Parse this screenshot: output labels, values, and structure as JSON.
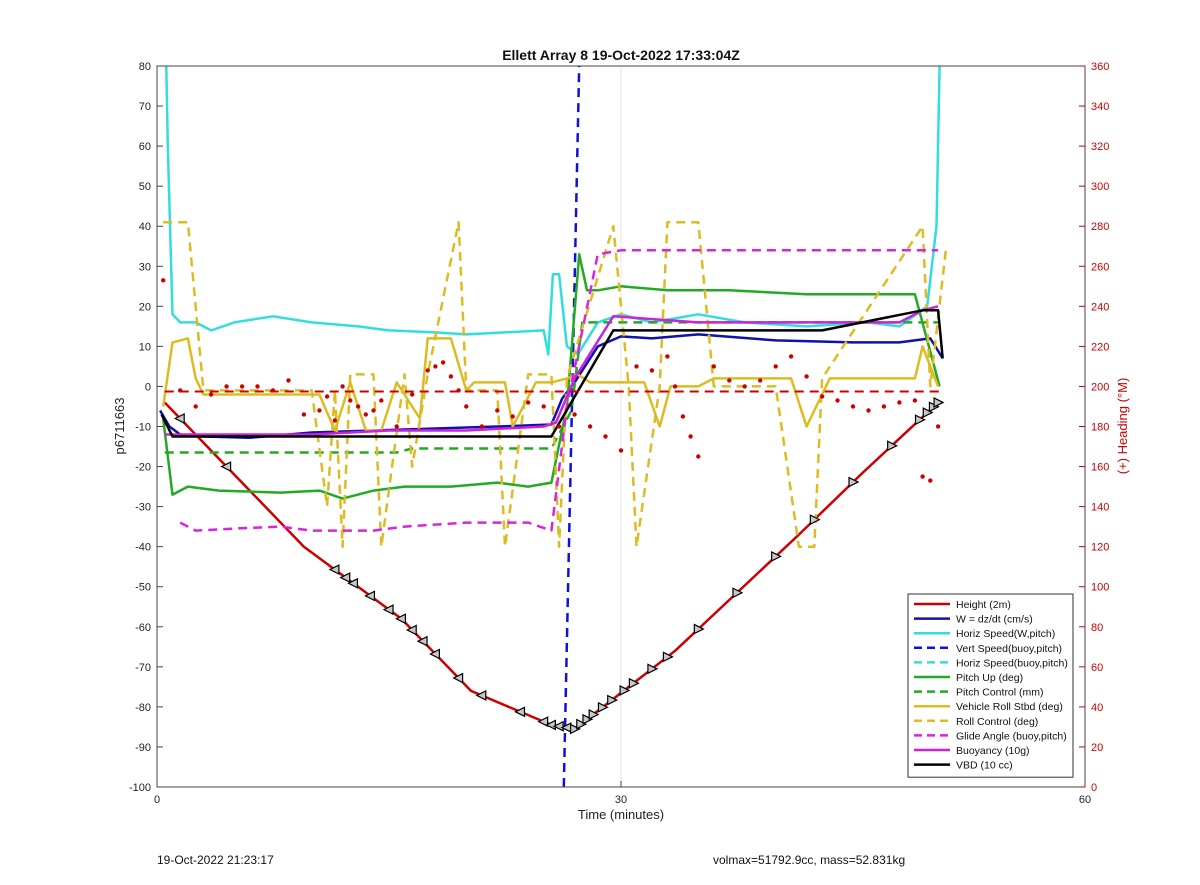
{
  "chart_data": {
    "type": "line",
    "title": "Ellett Array 8 19-Oct-2022 17:33:04Z",
    "xlabel": "Time (minutes)",
    "ylabel": "p6711663",
    "y2label": "(+) Heading (°M)",
    "xlim": [
      0,
      60
    ],
    "ylim": [
      -100,
      80
    ],
    "y2lim": [
      0,
      360
    ],
    "xticks": [
      0,
      30,
      60
    ],
    "yticks": [
      -100,
      -90,
      -80,
      -70,
      -60,
      -50,
      -40,
      -30,
      -20,
      -10,
      0,
      10,
      20,
      30,
      40,
      50,
      60,
      70,
      80
    ],
    "y2ticks": [
      0,
      20,
      40,
      60,
      80,
      100,
      120,
      140,
      160,
      180,
      200,
      220,
      240,
      260,
      280,
      300,
      320,
      340,
      360
    ],
    "grid": "x-only",
    "legend_position": "bottom-right",
    "colors": {
      "left_axis": "#000000",
      "right_axis": "#cc0000"
    },
    "series": [
      {
        "name": "Height (2m)",
        "color": "#cc0000",
        "style": "solid",
        "x": [
          0.5,
          9.5,
          15.8,
          20.3,
          25.5,
          27.0,
          29.5,
          33.5,
          41.5,
          45.5,
          50.5
        ],
        "y": [
          -4,
          -40,
          -58,
          -76,
          -84.5,
          -85.5,
          -78,
          -66,
          -37,
          -22,
          -4
        ]
      },
      {
        "name": "W = dz/dt (cm/s)",
        "color": "#1010aa",
        "style": "solid",
        "x": [
          0.2,
          0.8,
          1.5,
          3,
          6,
          10,
          14,
          18,
          22,
          25.5,
          26.2,
          27,
          28.5,
          30,
          32,
          35,
          40,
          45,
          48,
          50,
          50.8
        ],
        "y": [
          -6,
          -10,
          -12,
          -12.5,
          -12.8,
          -11.5,
          -11,
          -10.5,
          -10,
          -9.5,
          -3,
          1,
          10,
          12.5,
          12,
          13,
          11.5,
          11,
          11,
          12,
          7
        ]
      },
      {
        "name": "Horiz Speed(W,pitch)",
        "color": "#33dddd",
        "style": "solid",
        "x": [
          0.6,
          0.7,
          1.0,
          1.5,
          2.5,
          3.5,
          5,
          7.5,
          10,
          13,
          15,
          18,
          20,
          22.5,
          25,
          25.3,
          25.6,
          26,
          26.5,
          27.2,
          28.5,
          30,
          32,
          35,
          38,
          42,
          46,
          48,
          49.8,
          50.4,
          50.6
        ],
        "y": [
          80,
          60,
          18,
          16,
          16,
          14,
          16,
          17.5,
          16,
          15,
          14,
          13.5,
          13,
          13.5,
          14,
          8,
          28,
          28,
          10,
          8,
          16,
          18,
          16,
          18,
          16,
          15,
          16,
          15,
          20,
          40,
          80
        ]
      },
      {
        "name": "Vert Speed(buoy,pitch)",
        "color": "#1010dd",
        "style": "dashed",
        "x": [
          26.3,
          27.3
        ],
        "y": [
          -100,
          80
        ]
      },
      {
        "name": "Horiz Speed(buoy,pitch)",
        "color": "#33dddd",
        "style": "dashed",
        "x": [],
        "y": []
      },
      {
        "name": "Pitch Up (deg)",
        "color": "#22aa22",
        "style": "solid",
        "x": [
          0.4,
          1.0,
          2.0,
          4,
          8,
          10.5,
          12,
          14,
          16,
          19,
          22,
          24,
          25.5,
          26.5,
          27.3,
          27.8,
          28.5,
          30,
          33,
          37,
          42,
          46,
          49,
          50.6
        ],
        "y": [
          -8,
          -27,
          -25,
          -26,
          -26.5,
          -26,
          -28,
          -26,
          -25,
          -25,
          -24,
          -25,
          -24,
          -5,
          33,
          24,
          24,
          25,
          24,
          24,
          23,
          23,
          23,
          0
        ]
      },
      {
        "name": "Pitch Control (mm)",
        "color": "#22aa22",
        "style": "dashed",
        "x": [
          0.5,
          15.5,
          16.5,
          25.5,
          26.8,
          27.5,
          50.5
        ],
        "y": [
          -16.5,
          -16.5,
          -15.5,
          -15.5,
          -6,
          16,
          16
        ]
      },
      {
        "name": "Vehicle Roll Stbd (deg)",
        "color": "#ddbb22",
        "style": "solid",
        "x": [
          0.4,
          1.0,
          2.0,
          2.5,
          3,
          7,
          10.5,
          11.5,
          12.5,
          13.5,
          14.5,
          15.5,
          17,
          17.5,
          19,
          20,
          20.5,
          22.5,
          23,
          24.5,
          25.5,
          26.5,
          27.2,
          28,
          30,
          31.5,
          32.5,
          33.2,
          35,
          36,
          37,
          41,
          42,
          43.5,
          45,
          49,
          49.5,
          50.5
        ],
        "y": [
          -5,
          11,
          12,
          2,
          -2,
          -2,
          -2,
          -11,
          1,
          -11,
          -11,
          1,
          -8,
          12,
          12,
          -1,
          1,
          1,
          -10,
          1,
          1,
          2,
          3,
          1,
          1,
          1,
          -10,
          0,
          0,
          2,
          2,
          2,
          -10,
          2,
          2,
          2,
          10,
          0
        ]
      },
      {
        "name": "Roll Control (deg)",
        "color": "#ddbb22",
        "style": "dashed",
        "x": [
          0.4,
          2.0,
          3,
          10,
          11,
          11.5,
          12,
          12.5,
          14,
          14.5,
          16,
          16.5,
          17.5,
          19.5,
          20,
          22,
          22.5,
          24,
          25.5,
          26,
          26.5,
          29.5,
          30.5,
          31,
          32.5,
          33,
          35,
          36,
          38,
          40,
          41.5,
          42.5,
          43,
          49.5,
          50,
          51
        ],
        "y": [
          41,
          41,
          -1,
          -1,
          -30,
          -1,
          -40,
          3,
          3,
          -40,
          3,
          -20,
          3,
          41,
          -1,
          -1,
          -40,
          3,
          3,
          -40,
          2,
          40,
          0,
          -40,
          0,
          41,
          41,
          0,
          0,
          0,
          -40,
          -40,
          2,
          40,
          0,
          34
        ]
      },
      {
        "name": "Glide Angle (buoy,pitch)",
        "color": "#dd22dd",
        "style": "dashed",
        "x": [
          1.5,
          2.5,
          5,
          8,
          10,
          14,
          16,
          20,
          24,
          25.5,
          26.5,
          28.5,
          30,
          35,
          40,
          45,
          50.5
        ],
        "y": [
          -34,
          -36,
          -35.5,
          -35,
          -36,
          -36,
          -35,
          -34,
          -34,
          -36,
          -5,
          33,
          34,
          34,
          34,
          34,
          34
        ]
      },
      {
        "name": "Buoyancy (10g)",
        "color": "#cc22dd",
        "style": "solid",
        "x": [
          0.5,
          5,
          10,
          15,
          20,
          25,
          25.8,
          27,
          29.5,
          35,
          40,
          45,
          48,
          49.5,
          50.5
        ],
        "y": [
          -12,
          -12,
          -12,
          -11,
          -11,
          -10,
          -9,
          2,
          17.5,
          16,
          16,
          16,
          16,
          19,
          20
        ]
      },
      {
        "name": "VBD (10 cc)",
        "color": "#000000",
        "style": "solid",
        "x": [
          0.3,
          1.0,
          25.5,
          29.5,
          43,
          49.5,
          50.5,
          50.8
        ],
        "y": [
          -7,
          -12.5,
          -12.5,
          14,
          14,
          19,
          19,
          7
        ]
      }
    ],
    "heading_points": {
      "name": "Heading",
      "color": "#cc0000",
      "axis": "right",
      "x": [
        0.4,
        1.5,
        2.5,
        3.5,
        4.5,
        5.5,
        6.5,
        7.5,
        8.5,
        9.5,
        10.5,
        11.0,
        11.5,
        12.0,
        12.5,
        13.0,
        13.5,
        14.0,
        14.5,
        15.5,
        16.5,
        17.5,
        18.0,
        18.5,
        19.0,
        19.5,
        20.0,
        21.0,
        22.0,
        23.0,
        24.0,
        25.0,
        26.0,
        27.0,
        28.0,
        29.0,
        30.0,
        31.0,
        32.0,
        33.0,
        33.5,
        34.0,
        34.5,
        35.0,
        36.0,
        37.0,
        38.0,
        39.0,
        40.0,
        41.0,
        42.0,
        43.0,
        44.0,
        45.0,
        46.0,
        47.0,
        48.0,
        49.0,
        49.5,
        50.0,
        50.5
      ],
      "y": [
        253,
        198,
        190,
        196,
        200,
        200,
        200,
        198,
        203,
        186,
        188,
        195,
        183,
        200,
        193,
        190,
        186,
        188,
        193,
        180,
        196,
        208,
        210,
        212,
        205,
        198,
        190,
        180,
        188,
        185,
        192,
        190,
        180,
        186,
        180,
        175,
        168,
        210,
        208,
        215,
        200,
        185,
        175,
        165,
        210,
        203,
        200,
        203,
        210,
        215,
        205,
        195,
        193,
        190,
        188,
        190,
        192,
        193,
        155,
        153,
        180
      ]
    }
  },
  "footer": {
    "left": "19-Oct-2022 21:23:17",
    "right": "volmax=51792.9cc, mass=52.831kg"
  }
}
